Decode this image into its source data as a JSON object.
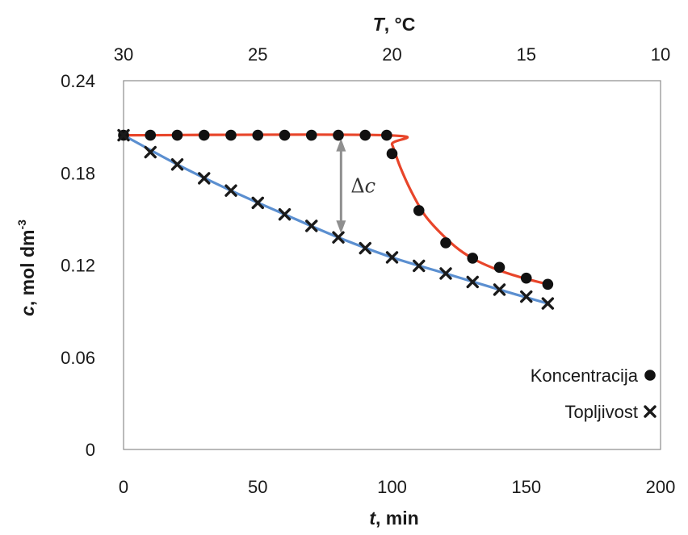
{
  "chart_data": {
    "type": "scatter",
    "x_axis": {
      "label": "t, min",
      "label_var": "t",
      "label_rest": ", min",
      "range": [
        0,
        200
      ],
      "ticks": [
        0,
        50,
        100,
        150,
        200
      ]
    },
    "x_top_axis": {
      "label": "T, °C",
      "label_var": "T",
      "label_rest": ", °C",
      "range": [
        30,
        10
      ],
      "ticks": [
        30,
        25,
        20,
        15,
        10
      ]
    },
    "y_axis": {
      "label": "c, mol dm-3",
      "label_var": "c",
      "label_rest": ", mol dm",
      "label_sup": "-3",
      "range": [
        0,
        0.24
      ],
      "ticks": [
        "0",
        "0.06",
        "0.12",
        "0.18",
        "0.24"
      ],
      "tick_values": [
        0,
        0.06,
        0.12,
        0.18,
        0.24
      ]
    },
    "grid": false,
    "legend_position": "bottom-right",
    "series": [
      {
        "name": "Koncentracija",
        "marker": "circle",
        "line_color": "#e8452a",
        "x": [
          0,
          10,
          20,
          30,
          40,
          50,
          60,
          70,
          80,
          90,
          98,
          100,
          110,
          120,
          130,
          140,
          150,
          158
        ],
        "y": [
          0.2045,
          0.2045,
          0.2045,
          0.2045,
          0.2045,
          0.2045,
          0.2045,
          0.2045,
          0.2045,
          0.2045,
          0.2045,
          0.1925,
          0.1555,
          0.1345,
          0.1245,
          0.1185,
          0.1115,
          0.1075
        ],
        "fit": [
          [
            0,
            0.2045
          ],
          [
            98,
            0.2045
          ],
          [
            100,
            0.1985
          ],
          [
            103,
            0.184
          ],
          [
            107,
            0.1685
          ],
          [
            112,
            0.153
          ],
          [
            118,
            0.141
          ],
          [
            125,
            0.13
          ],
          [
            132,
            0.1225
          ],
          [
            140,
            0.1165
          ],
          [
            148,
            0.112
          ],
          [
            158,
            0.1075
          ]
        ]
      },
      {
        "name": "Topljivost",
        "marker": "x",
        "line_color": "#5b8fd0",
        "x": [
          0,
          10,
          20,
          30,
          40,
          50,
          60,
          70,
          80,
          90,
          100,
          110,
          120,
          130,
          140,
          150,
          158
        ],
        "y": [
          0.2045,
          0.1935,
          0.1855,
          0.1765,
          0.1685,
          0.1605,
          0.153,
          0.1455,
          0.138,
          0.131,
          0.125,
          0.1195,
          0.1145,
          0.109,
          0.104,
          0.0995,
          0.095
        ],
        "fit": [
          [
            0,
            0.2045
          ],
          [
            20,
            0.1855
          ],
          [
            40,
            0.1685
          ],
          [
            60,
            0.153
          ],
          [
            80,
            0.138
          ],
          [
            100,
            0.125
          ],
          [
            120,
            0.1145
          ],
          [
            140,
            0.104
          ],
          [
            158,
            0.095
          ]
        ]
      }
    ],
    "annotations": [
      {
        "text": "Δc",
        "symbol": "Δ",
        "var": "c",
        "x": 81,
        "y_from": 0.2045,
        "y_to": 0.1385
      }
    ]
  }
}
